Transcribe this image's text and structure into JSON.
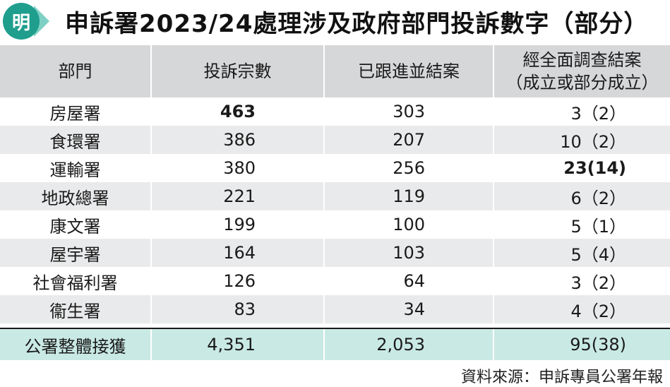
{
  "title": "申訴署2023/24處理涉及政府部門投訴數字（部分）",
  "logo_char": "明",
  "headers": [
    "部門",
    "投訴宗數",
    "已跟進並結案",
    "經全面調查結案\n（成立或部分成立）"
  ],
  "header_line1": "經全面調查結案",
  "header_line2": "（成立或部分成立）",
  "rows": [
    {
      "dept": "房屋署",
      "complaints": "463",
      "closed": "303",
      "investigated": "3（2）"
    },
    {
      "dept": "食環署",
      "complaints": "386",
      "closed": "207",
      "investigated": "10（2）"
    },
    {
      "dept": "運輸署",
      "complaints": "380",
      "closed": "256",
      "investigated": "23(14)"
    },
    {
      "dept": "地政總署",
      "complaints": "221",
      "closed": "119",
      "investigated": "6（2）"
    },
    {
      "dept": "康文署",
      "complaints": "199",
      "closed": "100",
      "investigated": "5（1）"
    },
    {
      "dept": "屋宇署",
      "complaints": "164",
      "closed": "103",
      "investigated": "5（4）"
    },
    {
      "dept": "社會福利署",
      "complaints": "126",
      "closed": "64",
      "investigated": "3（2）"
    },
    {
      "dept": "衞生署",
      "complaints": "83",
      "closed": "34",
      "investigated": "4（2）"
    }
  ],
  "total": {
    "dept": "公署整體接獲",
    "complaints": "4,351",
    "closed": "2,053",
    "investigated": "95(38)"
  },
  "source": "資料來源：申訴專員公署年報",
  "colors": {
    "accent": "#1f9e8e",
    "header_bg": "#d6d7d9",
    "row_alt": "#e9eaeb",
    "total_bg": "#c9e9e4"
  }
}
